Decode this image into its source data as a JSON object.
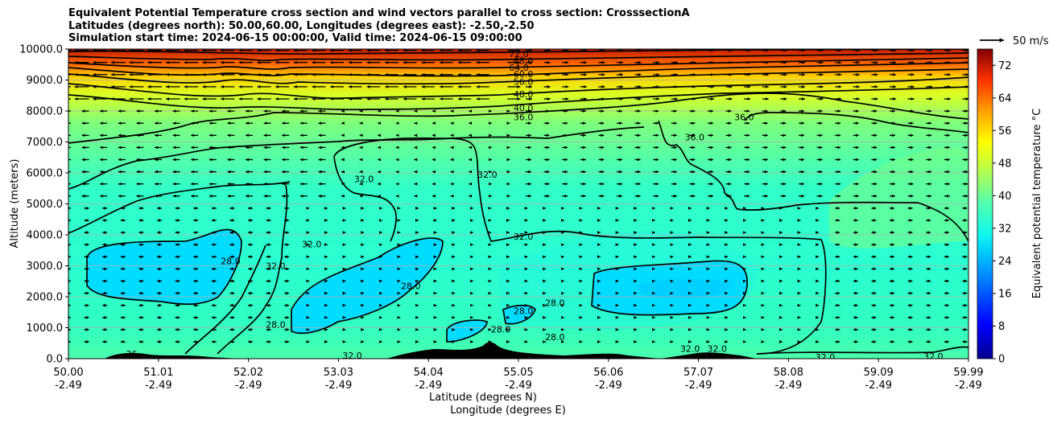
{
  "chart_data": {
    "type": "contour",
    "title_lines": [
      "Equivalent Potential Temperature cross section and wind vectors parallel to cross section: CrosssectionA",
      "Latitudes (degrees north): 50.00,60.00, Longitudes (degrees east): -2.50,-2.50",
      "Simulation start time: 2024-06-15 00:00:00, Valid time: 2024-06-15 09:00:00"
    ],
    "ylabel": "Altitude (meters)",
    "xlabel_line1": "Latitude (degrees N)",
    "xlabel_line2": "Longitude (degrees E)",
    "ylim": [
      0,
      10000
    ],
    "xlim": [
      50.0,
      59.99
    ],
    "y_ticks": [
      "0.0",
      "1000.0",
      "2000.0",
      "3000.0",
      "4000.0",
      "5000.0",
      "6000.0",
      "7000.0",
      "8000.0",
      "9000.0",
      "10000.0"
    ],
    "x_ticks": [
      {
        "lat": "50.00",
        "lon": "-2.49"
      },
      {
        "lat": "51.01",
        "lon": "-2.49"
      },
      {
        "lat": "52.02",
        "lon": "-2.49"
      },
      {
        "lat": "53.03",
        "lon": "-2.49"
      },
      {
        "lat": "54.04",
        "lon": "-2.49"
      },
      {
        "lat": "55.05",
        "lon": "-2.49"
      },
      {
        "lat": "56.06",
        "lon": "-2.49"
      },
      {
        "lat": "57.07",
        "lon": "-2.49"
      },
      {
        "lat": "58.08",
        "lon": "-2.49"
      },
      {
        "lat": "59.09",
        "lon": "-2.49"
      },
      {
        "lat": "59.99",
        "lon": "-2.49"
      }
    ],
    "grid": "horizontal",
    "colorbar": {
      "label": "Equivalent potential temperature $^\\circ$C",
      "label_display": "Equivalent potential temperature °C",
      "min": 0,
      "max": 76,
      "ticks": [
        "0",
        "8",
        "16",
        "24",
        "32",
        "40",
        "48",
        "56",
        "64",
        "72"
      ]
    },
    "quiver_key": "50 m/s",
    "contour_labels": [
      {
        "text": "72.0",
        "lat": 55.0,
        "alt": 9850
      },
      {
        "text": "68.0",
        "lat": 55.05,
        "alt": 9620
      },
      {
        "text": "64.0",
        "lat": 55.0,
        "alt": 9400
      },
      {
        "text": "60.0",
        "lat": 55.05,
        "alt": 9200
      },
      {
        "text": "56.0",
        "lat": 55.05,
        "alt": 8950
      },
      {
        "text": "48.0",
        "lat": 55.05,
        "alt": 8550
      },
      {
        "text": "40.0",
        "lat": 55.05,
        "alt": 8100
      },
      {
        "text": "36.0",
        "lat": 55.05,
        "alt": 7800
      },
      {
        "text": "36.0",
        "lat": 57.5,
        "alt": 7800
      },
      {
        "text": "36.0",
        "lat": 56.95,
        "alt": 7150
      },
      {
        "text": "32.0",
        "lat": 53.28,
        "alt": 5800
      },
      {
        "text": "32.0",
        "lat": 54.65,
        "alt": 5950
      },
      {
        "text": "32.0",
        "lat": 55.05,
        "alt": 3950
      },
      {
        "text": "32.0",
        "lat": 52.7,
        "alt": 3700
      },
      {
        "text": "28.0",
        "lat": 51.8,
        "alt": 3150
      },
      {
        "text": "32.0",
        "lat": 52.3,
        "alt": 3000
      },
      {
        "text": "28.0",
        "lat": 53.8,
        "alt": 2350
      },
      {
        "text": "28.0",
        "lat": 52.3,
        "alt": 1100
      },
      {
        "text": "28.0",
        "lat": 55.05,
        "alt": 1550
      },
      {
        "text": "28.0",
        "lat": 55.4,
        "alt": 1800
      },
      {
        "text": "28.0",
        "lat": 55.4,
        "alt": 700
      },
      {
        "text": "28.0",
        "lat": 54.8,
        "alt": 950
      },
      {
        "text": "36",
        "lat": 50.7,
        "alt": 150
      },
      {
        "text": "32.0",
        "lat": 53.15,
        "alt": 100
      },
      {
        "text": "32.0",
        "lat": 56.9,
        "alt": 330
      },
      {
        "text": "32.0",
        "lat": 57.2,
        "alt": 330
      },
      {
        "text": "32.0",
        "lat": 58.4,
        "alt": 50
      },
      {
        "text": "32.0",
        "lat": 59.6,
        "alt": 80
      }
    ]
  }
}
